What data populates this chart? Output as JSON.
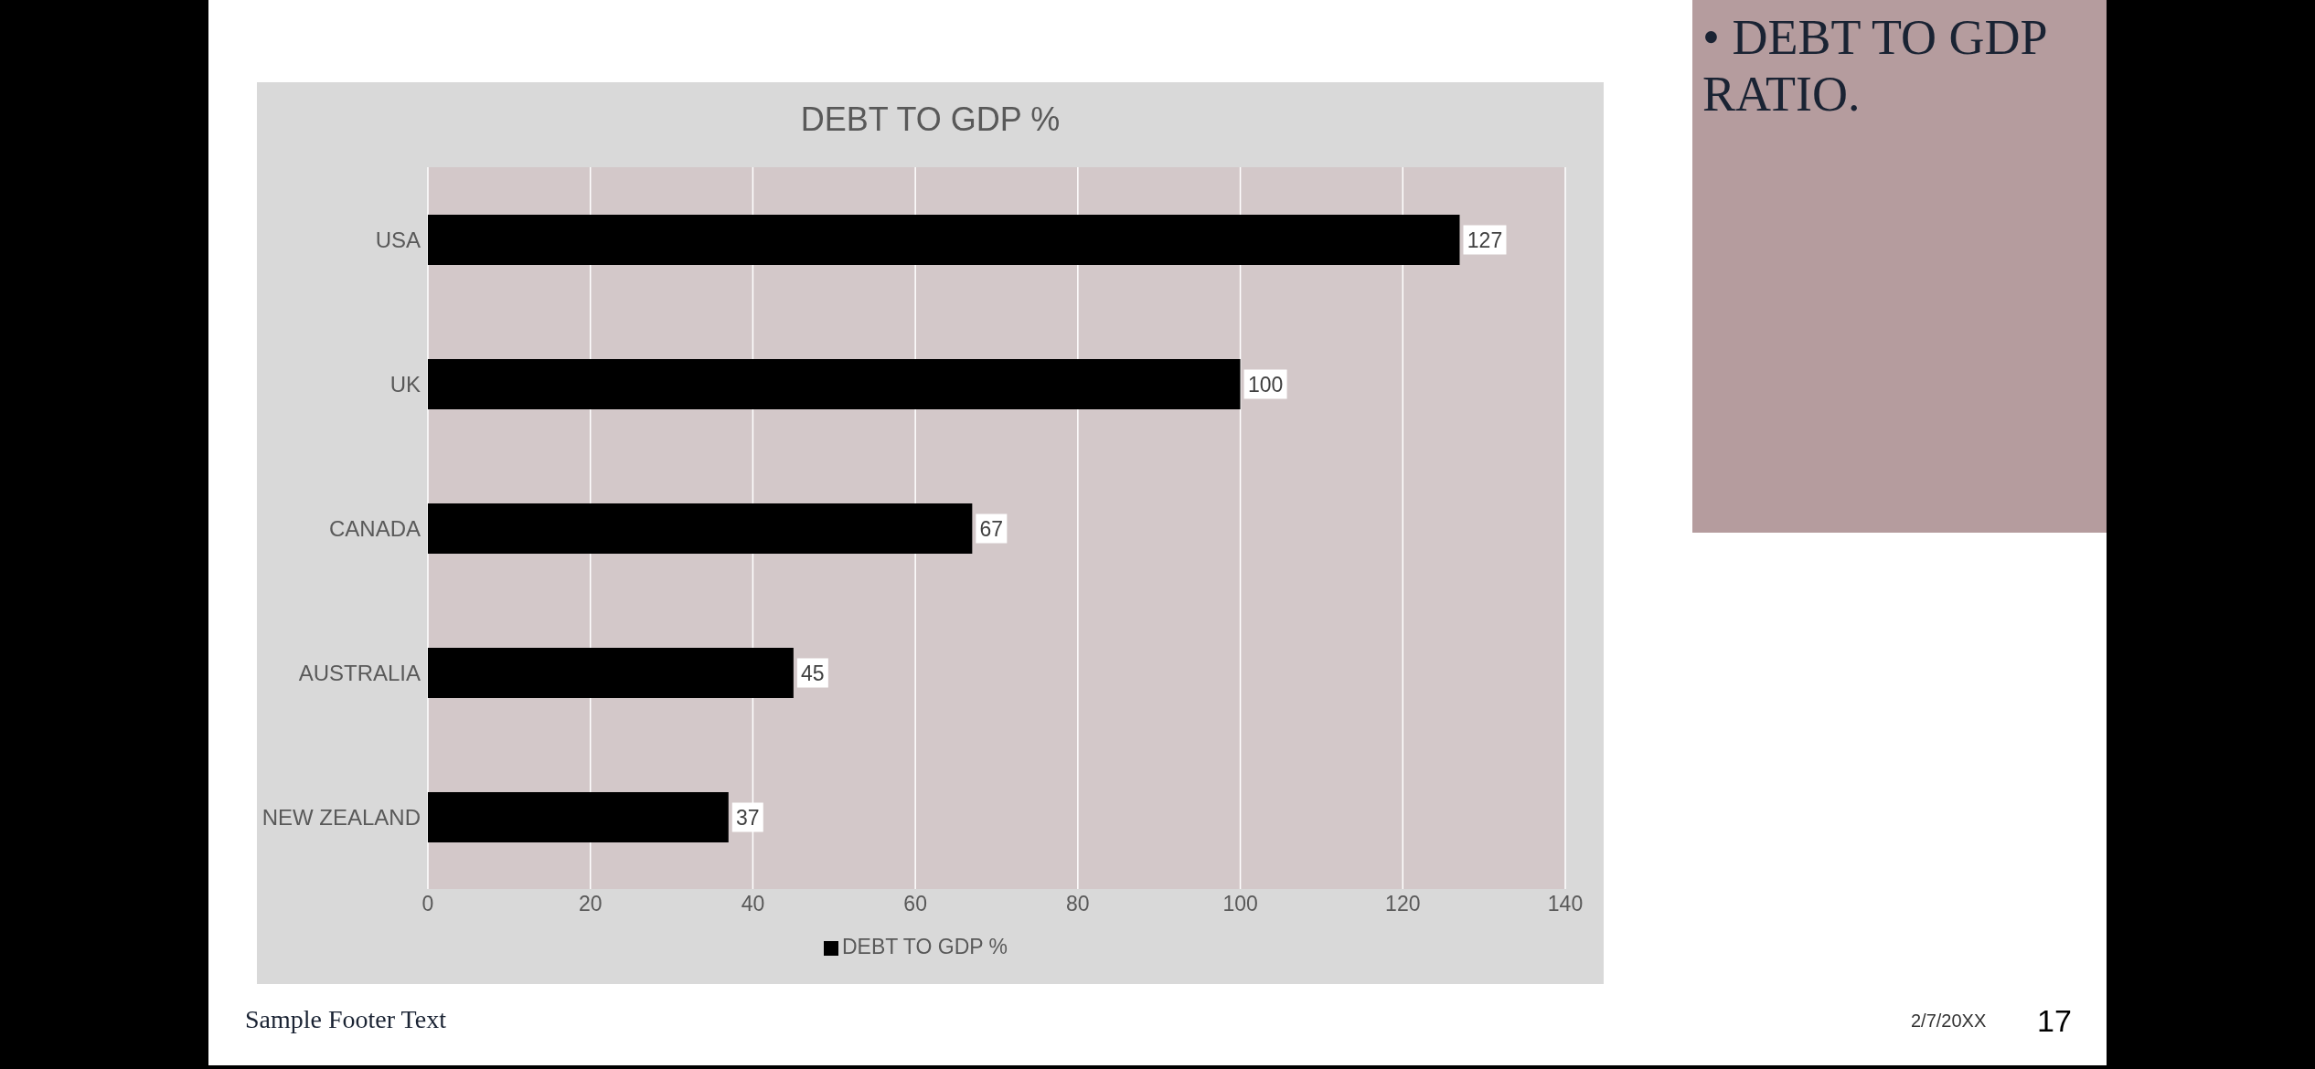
{
  "chart_data": {
    "type": "bar",
    "orientation": "horizontal",
    "title": "DEBT TO GDP %",
    "categories": [
      "USA",
      "UK",
      "CANADA",
      "AUSTRALIA",
      "NEW ZEALAND"
    ],
    "series": [
      {
        "name": "DEBT TO GDP %",
        "color": "#000000",
        "values": [
          127,
          100,
          67,
          45,
          37
        ]
      }
    ],
    "xlim": [
      0,
      140
    ],
    "xticks": [
      0,
      20,
      40,
      60,
      80,
      100,
      120,
      140
    ],
    "grid": "x",
    "legend": "bottom",
    "data_labels": true,
    "annotations": [
      "• DEBT TO GDP RATIO.",
      "Sample Footer Text",
      "2/7/20XX",
      "17"
    ]
  }
}
